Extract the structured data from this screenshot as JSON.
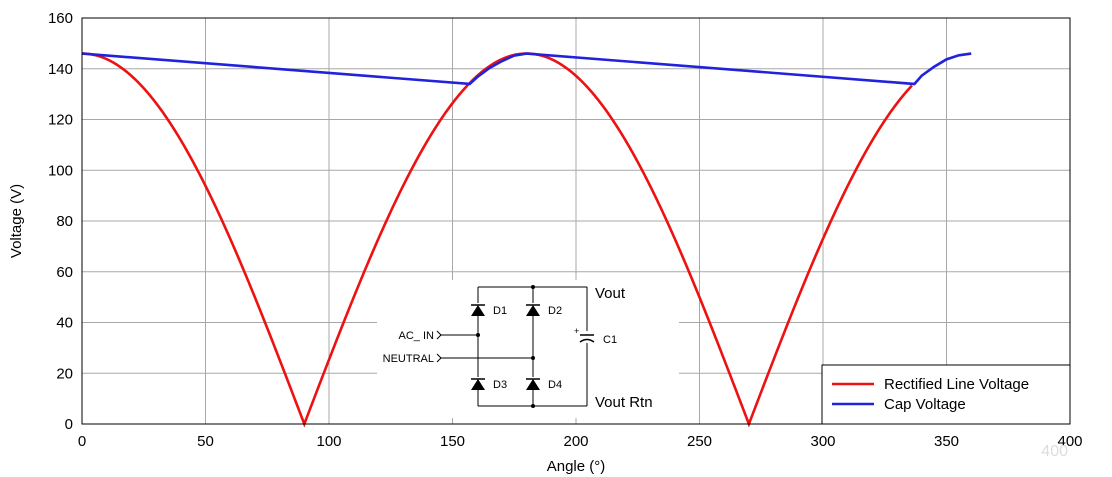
{
  "chart_data": {
    "type": "line",
    "title": "",
    "xlabel": "Angle (°)",
    "ylabel": "Voltage (V)",
    "xlim": [
      0,
      400
    ],
    "ylim": [
      0,
      160
    ],
    "x_ticks": [
      0,
      50,
      100,
      150,
      200,
      250,
      300,
      350,
      400
    ],
    "y_ticks": [
      0,
      20,
      40,
      60,
      80,
      100,
      120,
      140,
      160
    ],
    "x_tick_labels": [
      "0",
      "50",
      "100",
      "150",
      "200",
      "250",
      "300",
      "350",
      "400"
    ],
    "y_tick_labels": [
      "0",
      "20",
      "40",
      "60",
      "80",
      "100",
      "120",
      "140",
      "160"
    ],
    "grid": true,
    "legend": {
      "position": "bottom-right",
      "entries": [
        "Rectified Line Voltage",
        "Cap Voltage"
      ]
    },
    "series": [
      {
        "name": "Rectified Line Voltage",
        "color": "#ee1111",
        "function": "146 * |sin(x + 90°)|",
        "amplitude": 146,
        "phase_deg": 90,
        "x_range": [
          0,
          336
        ]
      },
      {
        "name": "Cap Voltage",
        "color": "#2222dd",
        "points": [
          [
            0,
            146
          ],
          [
            157,
            134
          ],
          [
            160,
            136.7
          ],
          [
            165,
            140.3
          ],
          [
            170,
            143.0
          ],
          [
            175,
            145.2
          ],
          [
            180,
            146
          ],
          [
            337,
            134
          ],
          [
            340,
            137.3
          ],
          [
            345,
            140.8
          ],
          [
            350,
            143.7
          ],
          [
            355,
            145.3
          ],
          [
            360,
            146
          ]
        ]
      }
    ]
  },
  "schematic": {
    "labels": {
      "ac_in": "AC_ IN",
      "neutral": "NEUTRAL",
      "d1": "D1",
      "d2": "D2",
      "d3": "D3",
      "d4": "D4",
      "c1": "C1",
      "vout": "Vout",
      "vout_rtn": "Vout Rtn",
      "cap_plus": "+"
    }
  },
  "watermark": "400"
}
